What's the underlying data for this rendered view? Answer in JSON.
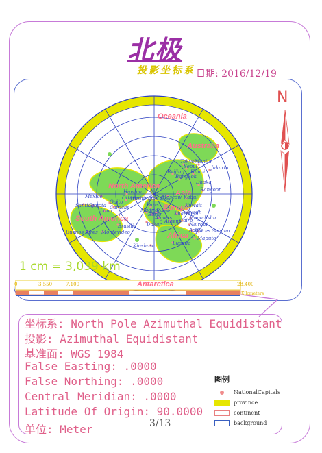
{
  "title": "北极",
  "subtitle": "投影坐标系",
  "date": "日期: 2016/12/19",
  "north_label": "N",
  "scale_text": "1 cm = 3,039 km",
  "scale_ticks": [
    "0",
    "3,550",
    "7,100",
    "",
    "",
    "",
    "",
    "28,400"
  ],
  "scale_unit": "Kilometers",
  "continents": [
    {
      "name": "Oceania"
    },
    {
      "name": "Australia"
    },
    {
      "name": "North America"
    },
    {
      "name": "Asia"
    },
    {
      "name": "South America"
    },
    {
      "name": "Africa"
    },
    {
      "name": "Antarctica"
    },
    {
      "name": "Europe"
    }
  ],
  "cities": [
    "Tokyo",
    "Manila",
    "Seoul",
    "Beijing",
    "Hanoi",
    "Jakarta",
    "Bangkok",
    "Dhaka",
    "Rangoon",
    "Moscow",
    "Kabul",
    "Havana",
    "Mexico",
    "Ottawa",
    "Washington D.C.",
    "Paris",
    "Lima",
    "Caracas",
    "Bogota",
    "Santiago",
    "Kuwait",
    "Riyadh",
    "Cairo",
    "Mogadishu",
    "Nairobi",
    "Addis",
    "Berlin",
    "Algiers",
    "Athens",
    "Dakar",
    "Brasilia",
    "Buenos Aires",
    "Montevideo",
    "Kinshasa",
    "Luanda",
    "Dar es Salaam",
    "Maputo",
    "Quito",
    "Khartoum",
    "Rome",
    "Madrid"
  ],
  "info": {
    "coord_system": "坐标系: North Pole Azimuthal Equidistant",
    "projection": "投影: Azimuthal Equidistant",
    "datum": "基准面: WGS 1984",
    "false_easting": "False Easting: .0000",
    "false_northing": "False Northing: .0000",
    "central_meridian": "Central Meridian: .0000",
    "latitude_origin": "Latitude Of Origin: 90.0000",
    "unit": "单位: Meter"
  },
  "legend": {
    "title": "图例",
    "items": [
      {
        "label": "NationalCapitals",
        "color": "#f08c8c"
      },
      {
        "label": "province",
        "color": "#e6e600"
      },
      {
        "label": "continent",
        "color": "#e88080"
      },
      {
        "label": "background",
        "color": "#3a5fc0"
      }
    ]
  },
  "page_number": "3/13",
  "colors": {
    "frame": "#c77ad8",
    "map_frame": "#5a6fd0",
    "province_fill": "#e6e600",
    "land_green": "#7ed957",
    "graticule": "#2a3ec0",
    "label_pink": "#ff6f8a",
    "city_blue": "#3548c8"
  }
}
